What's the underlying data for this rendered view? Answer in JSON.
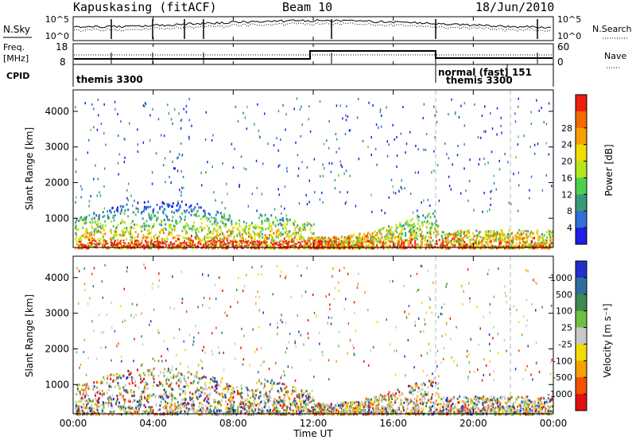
{
  "header": {
    "station": "Kapuskasing (fitACF)",
    "beam": "Beam 10",
    "date": "18/Jun/2010"
  },
  "noise_panel": {
    "left_label": "N.Sky",
    "right_label": "N.Search",
    "left_ticks": [
      "10^5",
      "10^0"
    ],
    "right_ticks": [
      "10^5",
      "10^0"
    ]
  },
  "freq_panel": {
    "left_label_1": "Freq.",
    "left_label_2": "[MHz]",
    "left_ticks": [
      "18",
      "8"
    ],
    "right_label": "Nave",
    "right_ticks": [
      "60",
      "0"
    ]
  },
  "cpid_panel": {
    "label": "CPID",
    "segments": [
      "themis 3300",
      "normal (fast) 151",
      "themis 3300"
    ]
  },
  "chart_data": [
    {
      "type": "heatmap",
      "name": "power",
      "ylabel": "Slant Range [km]",
      "ylim": [
        180,
        4600
      ],
      "yticks": [
        "1000",
        "2000",
        "3000",
        "4000"
      ],
      "xlim": [
        "00:00",
        "24:00"
      ],
      "colorbar_label": "Power [dB]",
      "colorbar_ticks": [
        "4",
        "8",
        "12",
        "16",
        "20",
        "24",
        "28"
      ],
      "colors": [
        "#1e1ee6",
        "#2f6fd8",
        "#3a9a78",
        "#4ed04e",
        "#b5e61e",
        "#f0dc00",
        "#f5a000",
        "#f36a00",
        "#ec1e10"
      ]
    },
    {
      "type": "heatmap",
      "name": "velocity",
      "ylabel": "Slant Range [km]",
      "ylim": [
        180,
        4600
      ],
      "yticks": [
        "1000",
        "2000",
        "3000",
        "4000"
      ],
      "xlim": [
        "00:00",
        "24:00"
      ],
      "xlabel": "Time UT",
      "xticks": [
        "00:00",
        "04:00",
        "08:00",
        "12:00",
        "16:00",
        "20:00",
        "00:00"
      ],
      "colorbar_label": "Velocity [m s⁻¹]",
      "colorbar_ticks": [
        "1000",
        "500",
        "100",
        "25",
        "-25",
        "-100",
        "-500",
        "-1000"
      ],
      "colors": [
        "#2030c8",
        "#2f6fa0",
        "#3c8a50",
        "#70c040",
        "#c8c8c8",
        "#f0dc00",
        "#f5a000",
        "#f35000",
        "#e01010"
      ]
    }
  ]
}
